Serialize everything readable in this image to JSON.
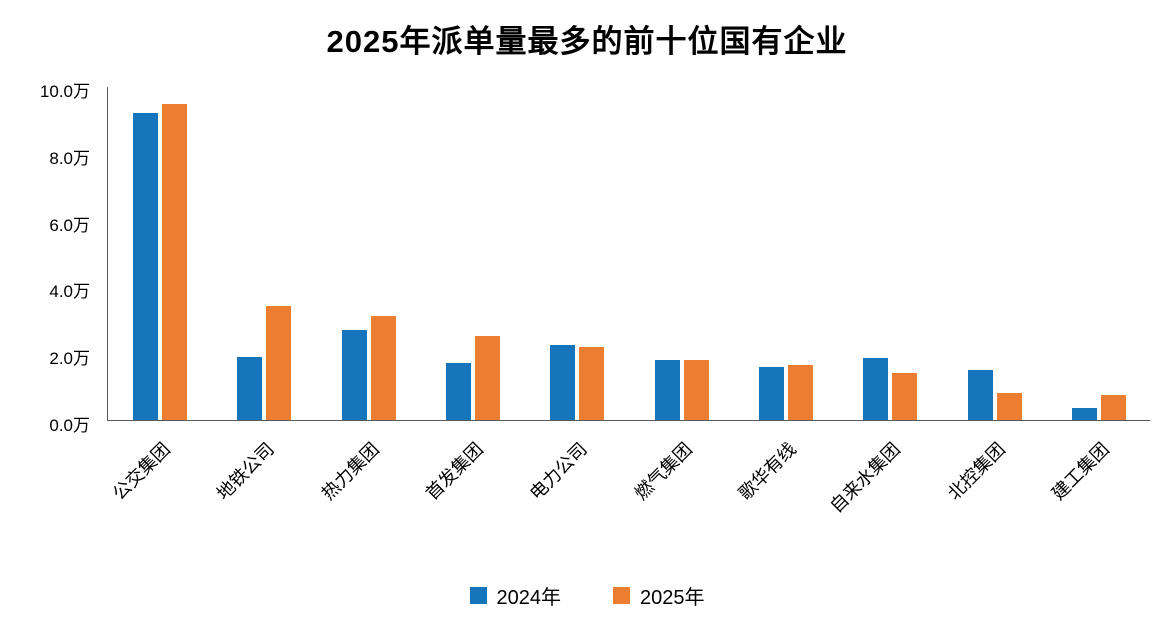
{
  "chart_data": {
    "type": "bar",
    "title": "2025年派单量最多的前十位国有企业",
    "categories": [
      "公交集团",
      "地铁公司",
      "热力集团",
      "首发集团",
      "电力公司",
      "燃气集团",
      "歌华有线",
      "自来水集团",
      "北控集团",
      "建工集团"
    ],
    "series": [
      {
        "name": "2024年",
        "color": "#1674BB",
        "values": [
          9.2,
          1.9,
          2.7,
          1.7,
          2.25,
          1.8,
          1.6,
          1.85,
          1.5,
          0.35
        ]
      },
      {
        "name": "2025年",
        "color": "#ED7D31",
        "values": [
          9.45,
          3.4,
          3.1,
          2.5,
          2.2,
          1.8,
          1.65,
          1.4,
          0.8,
          0.75
        ]
      }
    ],
    "unit": "万",
    "xlabel": "",
    "ylabel": "",
    "ylim": [
      0,
      10
    ],
    "y_ticks": [
      "0.0万",
      "2.0万",
      "4.0万",
      "6.0万",
      "8.0万",
      "10.0万"
    ],
    "grid": false,
    "legend_position": "bottom"
  }
}
